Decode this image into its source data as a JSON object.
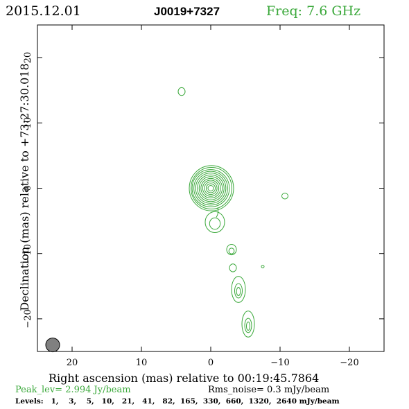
{
  "header": {
    "date": "2015.12.01",
    "source": "J0019+7327",
    "freq": "Freq: 7.6 GHz"
  },
  "axes": {
    "xlabel": "Right ascension (mas) relative to 00:19:45.7864",
    "ylabel": "Declination (mas) relative to +73:27:30.018",
    "xlim": [
      25,
      -25
    ],
    "ylim": [
      -25,
      25
    ],
    "xticks": [
      20,
      10,
      0,
      -10,
      -20
    ],
    "xtick_labels": [
      "20",
      "10",
      "0",
      "−10",
      "−20"
    ],
    "yticks": [
      20,
      10,
      0,
      -10,
      -20
    ],
    "ytick_labels": [
      "20",
      "10",
      "0",
      "−10",
      "−20"
    ]
  },
  "footer": {
    "peak": "Peak_lev=  2.994 Jy/beam",
    "rms": "Rms_noise=  0.3 mJy/beam",
    "levels": "Levels:   1,    3,    5,   10,   21,   41,   82,  165,  330,  660,  1320,  2640 mJy/beam"
  },
  "colors": {
    "contour": "#3aa83a",
    "freq": "#3aa83a",
    "beam_fill": "#808080",
    "axis": "#000000"
  },
  "chart_data": {
    "type": "contour",
    "core": {
      "x": 0,
      "y": 0,
      "levels": 12
    },
    "components": [
      {
        "id": "knot-north",
        "x": 4.2,
        "y": 14.8,
        "rx": 0.5,
        "ry": 0.6
      },
      {
        "id": "knot-east",
        "x": -10.7,
        "y": -1.2,
        "rx": 0.45,
        "ry": 0.45
      },
      {
        "id": "inner-jet",
        "x": -0.6,
        "y": -5.2,
        "rx": 1.4,
        "ry": 1.6
      },
      {
        "id": "jet-1",
        "x": -3.0,
        "y": -9.4,
        "rx": 0.7,
        "ry": 0.8
      },
      {
        "id": "jet-2",
        "x": -3.2,
        "y": -12.2,
        "rx": 0.5,
        "ry": 0.6
      },
      {
        "id": "knot-small",
        "x": -7.5,
        "y": -12.0,
        "rx": 0.2,
        "ry": 0.2
      },
      {
        "id": "jet-3",
        "x": -4.0,
        "y": -15.5,
        "rx": 1.0,
        "ry": 2.0
      },
      {
        "id": "jet-4",
        "x": -5.4,
        "y": -20.8,
        "rx": 0.9,
        "ry": 2.0
      }
    ],
    "beam": {
      "x": 22.8,
      "y": -24,
      "r": 1.0
    }
  }
}
